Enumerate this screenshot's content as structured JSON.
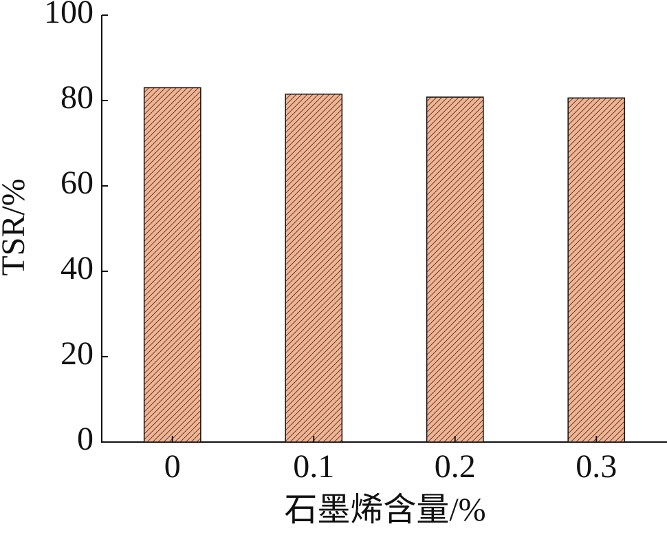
{
  "chart_data": {
    "type": "bar",
    "xlabel": "石墨烯含量/%",
    "ylabel": "TSR/%",
    "categories": [
      "0",
      "0.1",
      "0.2",
      "0.3"
    ],
    "values": [
      83,
      81.5,
      80.8,
      80.6
    ],
    "color": "#f5b38f",
    "ylim": [
      0,
      100
    ],
    "yticks": [
      0,
      20,
      40,
      60,
      80,
      100
    ]
  }
}
